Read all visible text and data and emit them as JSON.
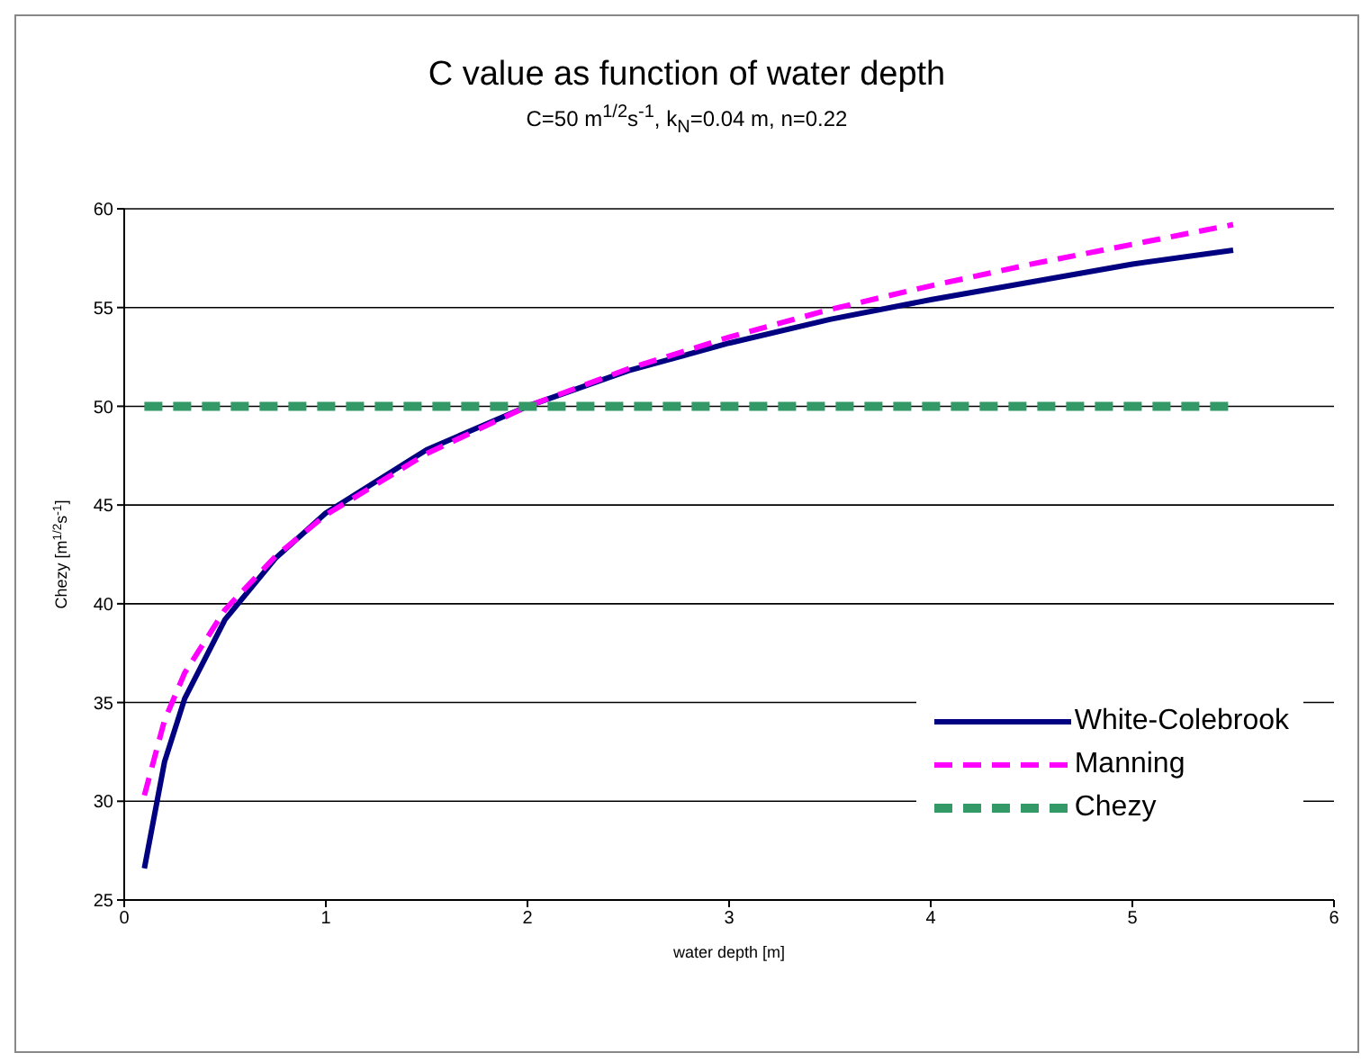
{
  "chart_data": {
    "type": "line",
    "title": "C value as function of water depth",
    "subtitle": "C=50 m$^{1/2}$s$^{-1}$, k$_{N}$=0.04 m, n=0.22",
    "xlabel": "water depth [m]",
    "ylabel": "Chezy [m$^{1/2}$s$^{-1}$]",
    "xlim": [
      0,
      6
    ],
    "xticks": [
      0,
      1,
      2,
      3,
      4,
      5,
      6
    ],
    "ylim": [
      25,
      60
    ],
    "yticks": [
      25,
      30,
      35,
      40,
      45,
      50,
      55,
      60
    ],
    "grid": "y",
    "legend": "bottom right",
    "marker": "none",
    "series": [
      {
        "name": "White-Colebrook",
        "color": "#000080",
        "line_style": "solid",
        "x": [
          0.1,
          0.2,
          0.3,
          0.5,
          0.75,
          1,
          1.5,
          2,
          2.5,
          3,
          3.5,
          4,
          4.5,
          5,
          5.5
        ],
        "values": [
          26.6,
          32.0,
          35.2,
          39.2,
          42.3,
          44.6,
          47.8,
          50.0,
          51.8,
          53.2,
          54.4,
          55.4,
          56.3,
          57.2,
          57.9
        ]
      },
      {
        "name": "Manning",
        "color": "#ff00ff",
        "line_style": "dashed",
        "x": [
          0.1,
          0.2,
          0.3,
          0.5,
          0.75,
          1,
          1.5,
          2,
          2.5,
          3,
          3.5,
          4,
          4.5,
          5,
          5.5
        ],
        "values": [
          30.3,
          34.1,
          36.5,
          39.7,
          42.4,
          44.5,
          47.6,
          50.0,
          51.9,
          53.5,
          54.9,
          56.1,
          57.2,
          58.2,
          59.2
        ]
      },
      {
        "name": "Chezy",
        "color": "#339966",
        "line_style": "dashed",
        "x": [
          0.1,
          5.5
        ],
        "values": [
          50,
          50
        ]
      }
    ]
  }
}
